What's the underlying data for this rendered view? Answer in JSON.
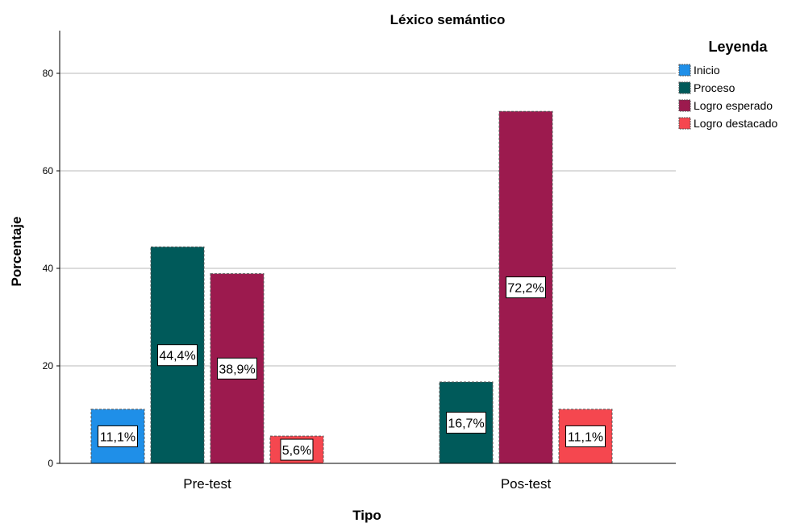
{
  "chart_data": {
    "type": "bar",
    "title": "Léxico semántico",
    "xlabel": "Tipo",
    "ylabel": "Porcentaje",
    "categories": [
      "Pre-test",
      "Pos-test"
    ],
    "ylim": [
      0,
      88
    ],
    "yticks": [
      0,
      20,
      40,
      60,
      80
    ],
    "grid": true,
    "legend": {
      "title": "Leyenda",
      "placement": "top-right"
    },
    "series": [
      {
        "name": "Inicio",
        "color": "#1F8FE8",
        "values": [
          11.1,
          null
        ],
        "labels": [
          "11,1%",
          ""
        ]
      },
      {
        "name": "Proceso",
        "color": "#005A5A",
        "values": [
          44.4,
          16.7
        ],
        "labels": [
          "44,4%",
          "16,7%"
        ]
      },
      {
        "name": "Logro esperado",
        "color": "#9C1A4E",
        "values": [
          38.9,
          72.2
        ],
        "labels": [
          "38,9%",
          "72,2%"
        ]
      },
      {
        "name": "Logro destacado",
        "color": "#F5474F",
        "values": [
          5.6,
          11.1
        ],
        "labels": [
          "5,6%",
          "11,1%"
        ]
      }
    ]
  }
}
